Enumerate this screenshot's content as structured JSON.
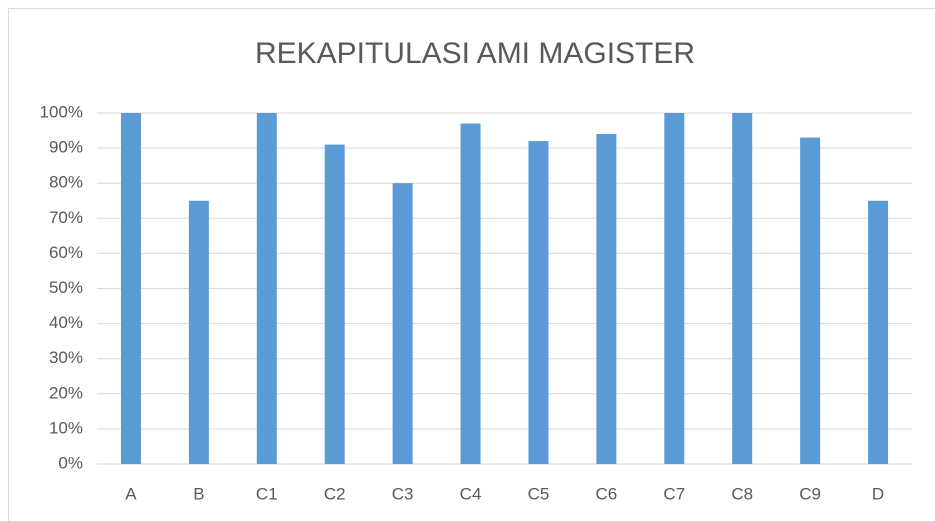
{
  "chart_data": {
    "type": "bar",
    "title": "REKAPITULASI AMI MAGISTER",
    "categories": [
      "A",
      "B",
      "C1",
      "C2",
      "C3",
      "C4",
      "C5",
      "C6",
      "C7",
      "C8",
      "C9",
      "D"
    ],
    "values": [
      100,
      75,
      100,
      91,
      80,
      97,
      92,
      94,
      100,
      100,
      93,
      75
    ],
    "color": "#5b9bd5",
    "ylim": [
      0,
      100
    ],
    "yticks": [
      {
        "value": 0,
        "label": "0%"
      },
      {
        "value": 10,
        "label": "10%"
      },
      {
        "value": 20,
        "label": "20%"
      },
      {
        "value": 30,
        "label": "30%"
      },
      {
        "value": 40,
        "label": "40%"
      },
      {
        "value": 50,
        "label": "50%"
      },
      {
        "value": 60,
        "label": "60%"
      },
      {
        "value": 70,
        "label": "70%"
      },
      {
        "value": 80,
        "label": "80%"
      },
      {
        "value": 90,
        "label": "90%"
      },
      {
        "value": 100,
        "label": "100%"
      }
    ],
    "grid": true
  }
}
